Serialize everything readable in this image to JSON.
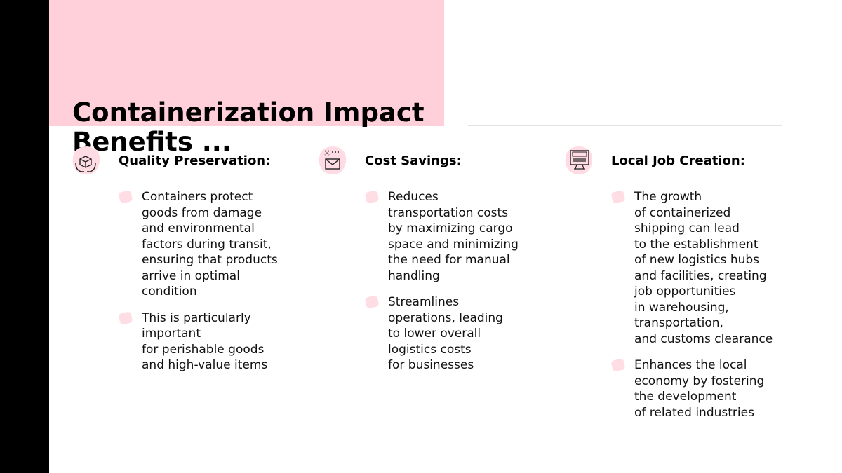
{
  "title": [
    "Containerization Impact",
    "Benefits ..."
  ],
  "columns": [
    {
      "heading": "Quality Preservation:",
      "bullets": [
        [
          "Containers protect",
          "goods from damage",
          "and environmental",
          "factors during transit,",
          "ensuring that products",
          "arrive in optimal",
          "condition"
        ],
        [
          "This is particularly",
          "important",
          "for perishable goods",
          "and high-value items"
        ]
      ]
    },
    {
      "heading": "Cost Savings:",
      "bullets": [
        [
          "Reduces",
          "transportation costs",
          "by maximizing cargo",
          "space and minimizing",
          "the need for manual",
          "handling"
        ],
        [
          "Streamlines",
          "operations, leading",
          "to lower overall",
          "logistics costs",
          "for businesses"
        ]
      ]
    },
    {
      "heading": "Local Job Creation:",
      "bullets": [
        [
          "The growth",
          "of containerized",
          "shipping can lead",
          "to the establishment",
          "of new logistics hubs",
          "and facilities, creating",
          "job opportunities",
          "in warehousing,",
          "transportation,",
          "and customs clearance"
        ],
        [
          "Enhances the local",
          "economy by fostering",
          "the development",
          "of related industries"
        ]
      ]
    }
  ]
}
